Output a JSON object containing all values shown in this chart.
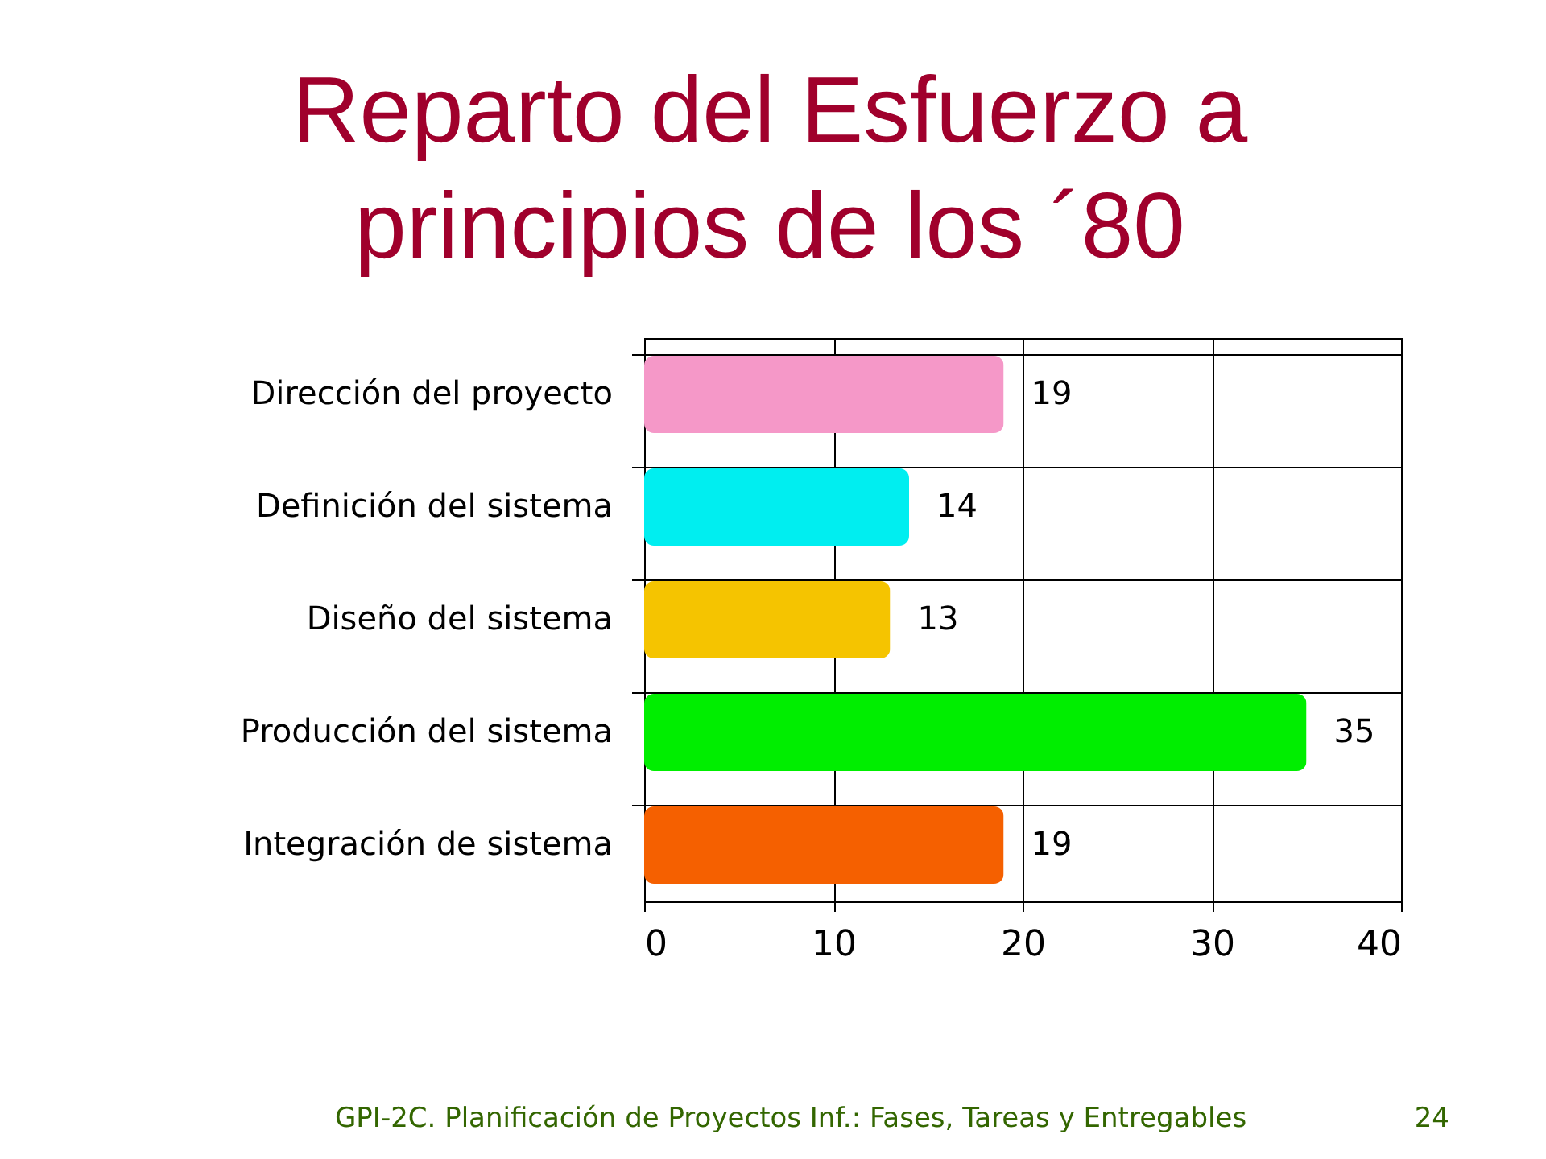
{
  "chart_data": {
    "type": "bar",
    "orientation": "horizontal",
    "title": "Reparto del Esfuerzo a\nprincipios de los ´80",
    "categories": [
      "Dirección del proyecto",
      "Definición del sistema",
      "Diseño del sistema",
      "Producción del sistema",
      "Integración de sistema"
    ],
    "values": [
      19,
      14,
      13,
      35,
      19
    ],
    "colors": [
      "#f598c8",
      "#00eef0",
      "#f5c400",
      "#00ee00",
      "#f56000"
    ],
    "xlim": [
      0,
      40
    ],
    "xticks": [
      0,
      10,
      20,
      30,
      40
    ],
    "grid": true,
    "data_labels": true,
    "legend": false,
    "annotations": [
      "GPI-2C. Planificación de Proyectos Inf.: Fases, Tareas y Entregables",
      "24"
    ]
  }
}
